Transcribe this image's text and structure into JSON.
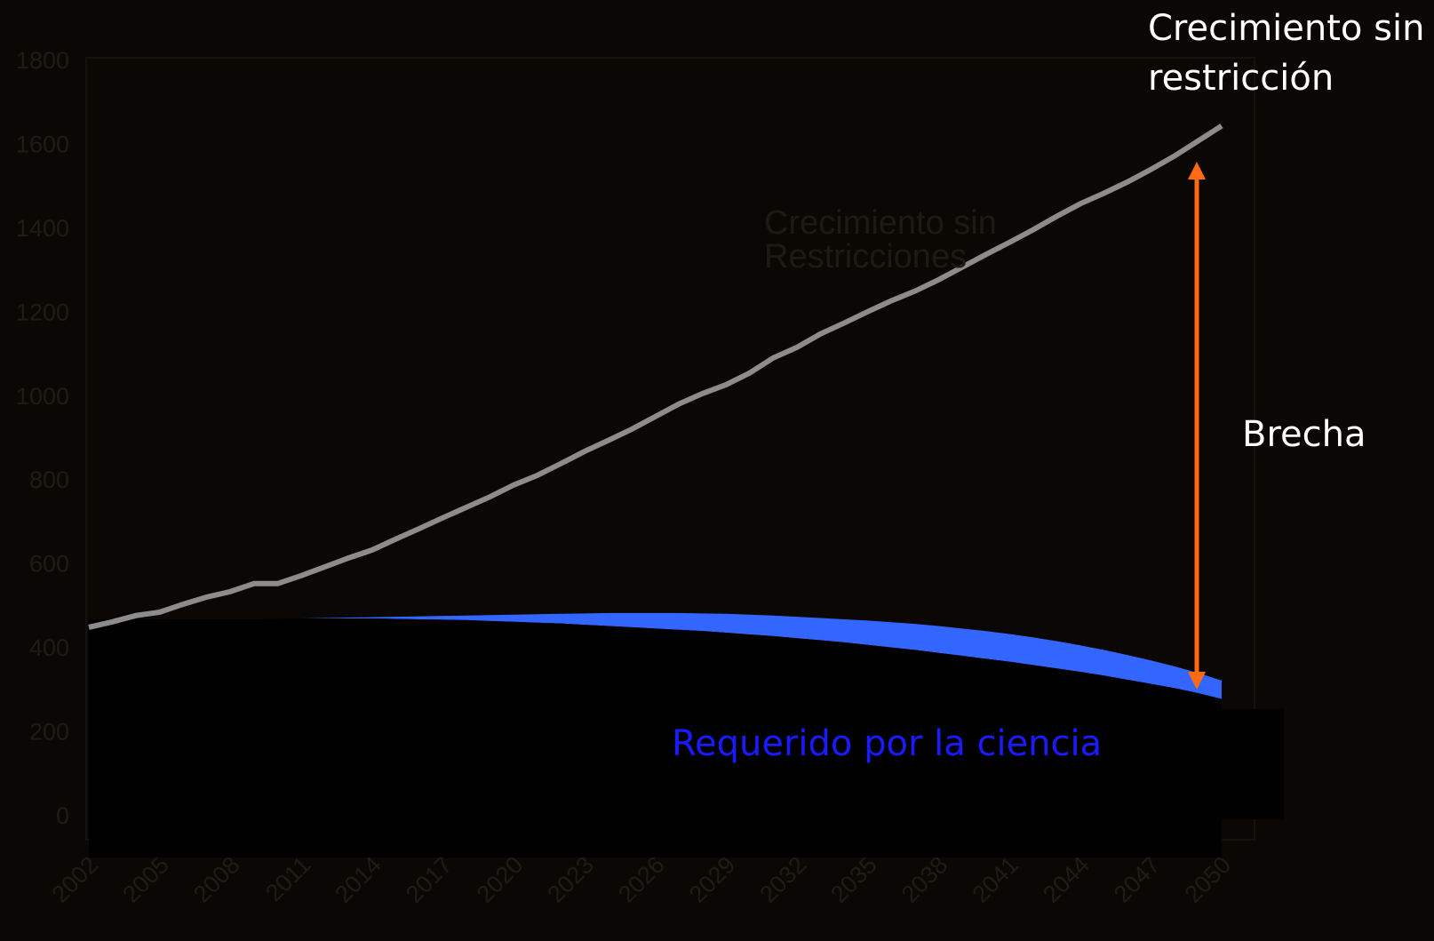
{
  "chart_data": {
    "type": "line",
    "x": [
      2002,
      2003,
      2004,
      2005,
      2006,
      2007,
      2008,
      2009,
      2010,
      2011,
      2012,
      2013,
      2014,
      2015,
      2016,
      2017,
      2018,
      2019,
      2020,
      2021,
      2022,
      2023,
      2024,
      2025,
      2026,
      2027,
      2028,
      2029,
      2030,
      2031,
      2032,
      2033,
      2034,
      2035,
      2036,
      2037,
      2038,
      2039,
      2040,
      2041,
      2042,
      2043,
      2044,
      2045,
      2046,
      2047,
      2048,
      2049,
      2050
    ],
    "xlim": [
      2002,
      2050
    ],
    "xticks": [
      2002,
      2005,
      2008,
      2011,
      2014,
      2017,
      2020,
      2023,
      2026,
      2029,
      2032,
      2035,
      2038,
      2041,
      2044,
      2047,
      2050
    ],
    "ylim": [
      0,
      1800
    ],
    "yticks": [
      0,
      200,
      400,
      600,
      800,
      1000,
      1200,
      1400,
      1600,
      1800
    ],
    "series": [
      {
        "name": "Crecimiento sin restricción",
        "color": "#8c8c8c",
        "values": [
          447,
          460,
          475,
          483,
          502,
          519,
          532,
          551,
          551,
          570,
          591,
          612,
          631,
          657,
          682,
          708,
          733,
          758,
          786,
          809,
          837,
          866,
          892,
          919,
          949,
          979,
          1004,
          1025,
          1053,
          1089,
          1114,
          1146,
          1172,
          1199,
          1225,
          1248,
          1275,
          1305,
          1335,
          1364,
          1394,
          1426,
          1456,
          1481,
          1508,
          1538,
          1570,
          1606,
          1642
        ]
      },
      {
        "name": "Requerido por la ciencia",
        "color": "#3366ff",
        "label_color": "#1a1aff",
        "values": [
          466,
          466,
          466,
          466,
          466,
          466,
          466,
          466,
          467,
          468,
          469,
          470,
          471,
          472,
          473,
          474,
          475,
          476,
          477,
          478,
          479,
          480,
          481,
          481,
          481,
          481,
          480,
          479,
          477,
          475,
          472,
          469,
          466,
          463,
          459,
          455,
          450,
          444,
          438,
          431,
          423,
          414,
          404,
          393,
          381,
          368,
          354,
          338,
          320
        ],
        "lower": [
          466,
          466,
          466,
          466,
          466,
          466,
          466,
          466,
          467,
          468,
          468,
          468,
          468,
          467,
          466,
          465,
          464,
          462,
          460,
          458,
          456,
          453,
          450,
          447,
          444,
          441,
          438,
          434,
          430,
          426,
          421,
          416,
          411,
          405,
          399,
          393,
          386,
          379,
          372,
          365,
          357,
          349,
          341,
          332,
          322,
          312,
          302,
          290,
          276
        ]
      }
    ],
    "annotations": {
      "gap": "Brecha",
      "faded": "Crecimiento sin Restricciones"
    },
    "arrow_color": "#ff6a13"
  }
}
